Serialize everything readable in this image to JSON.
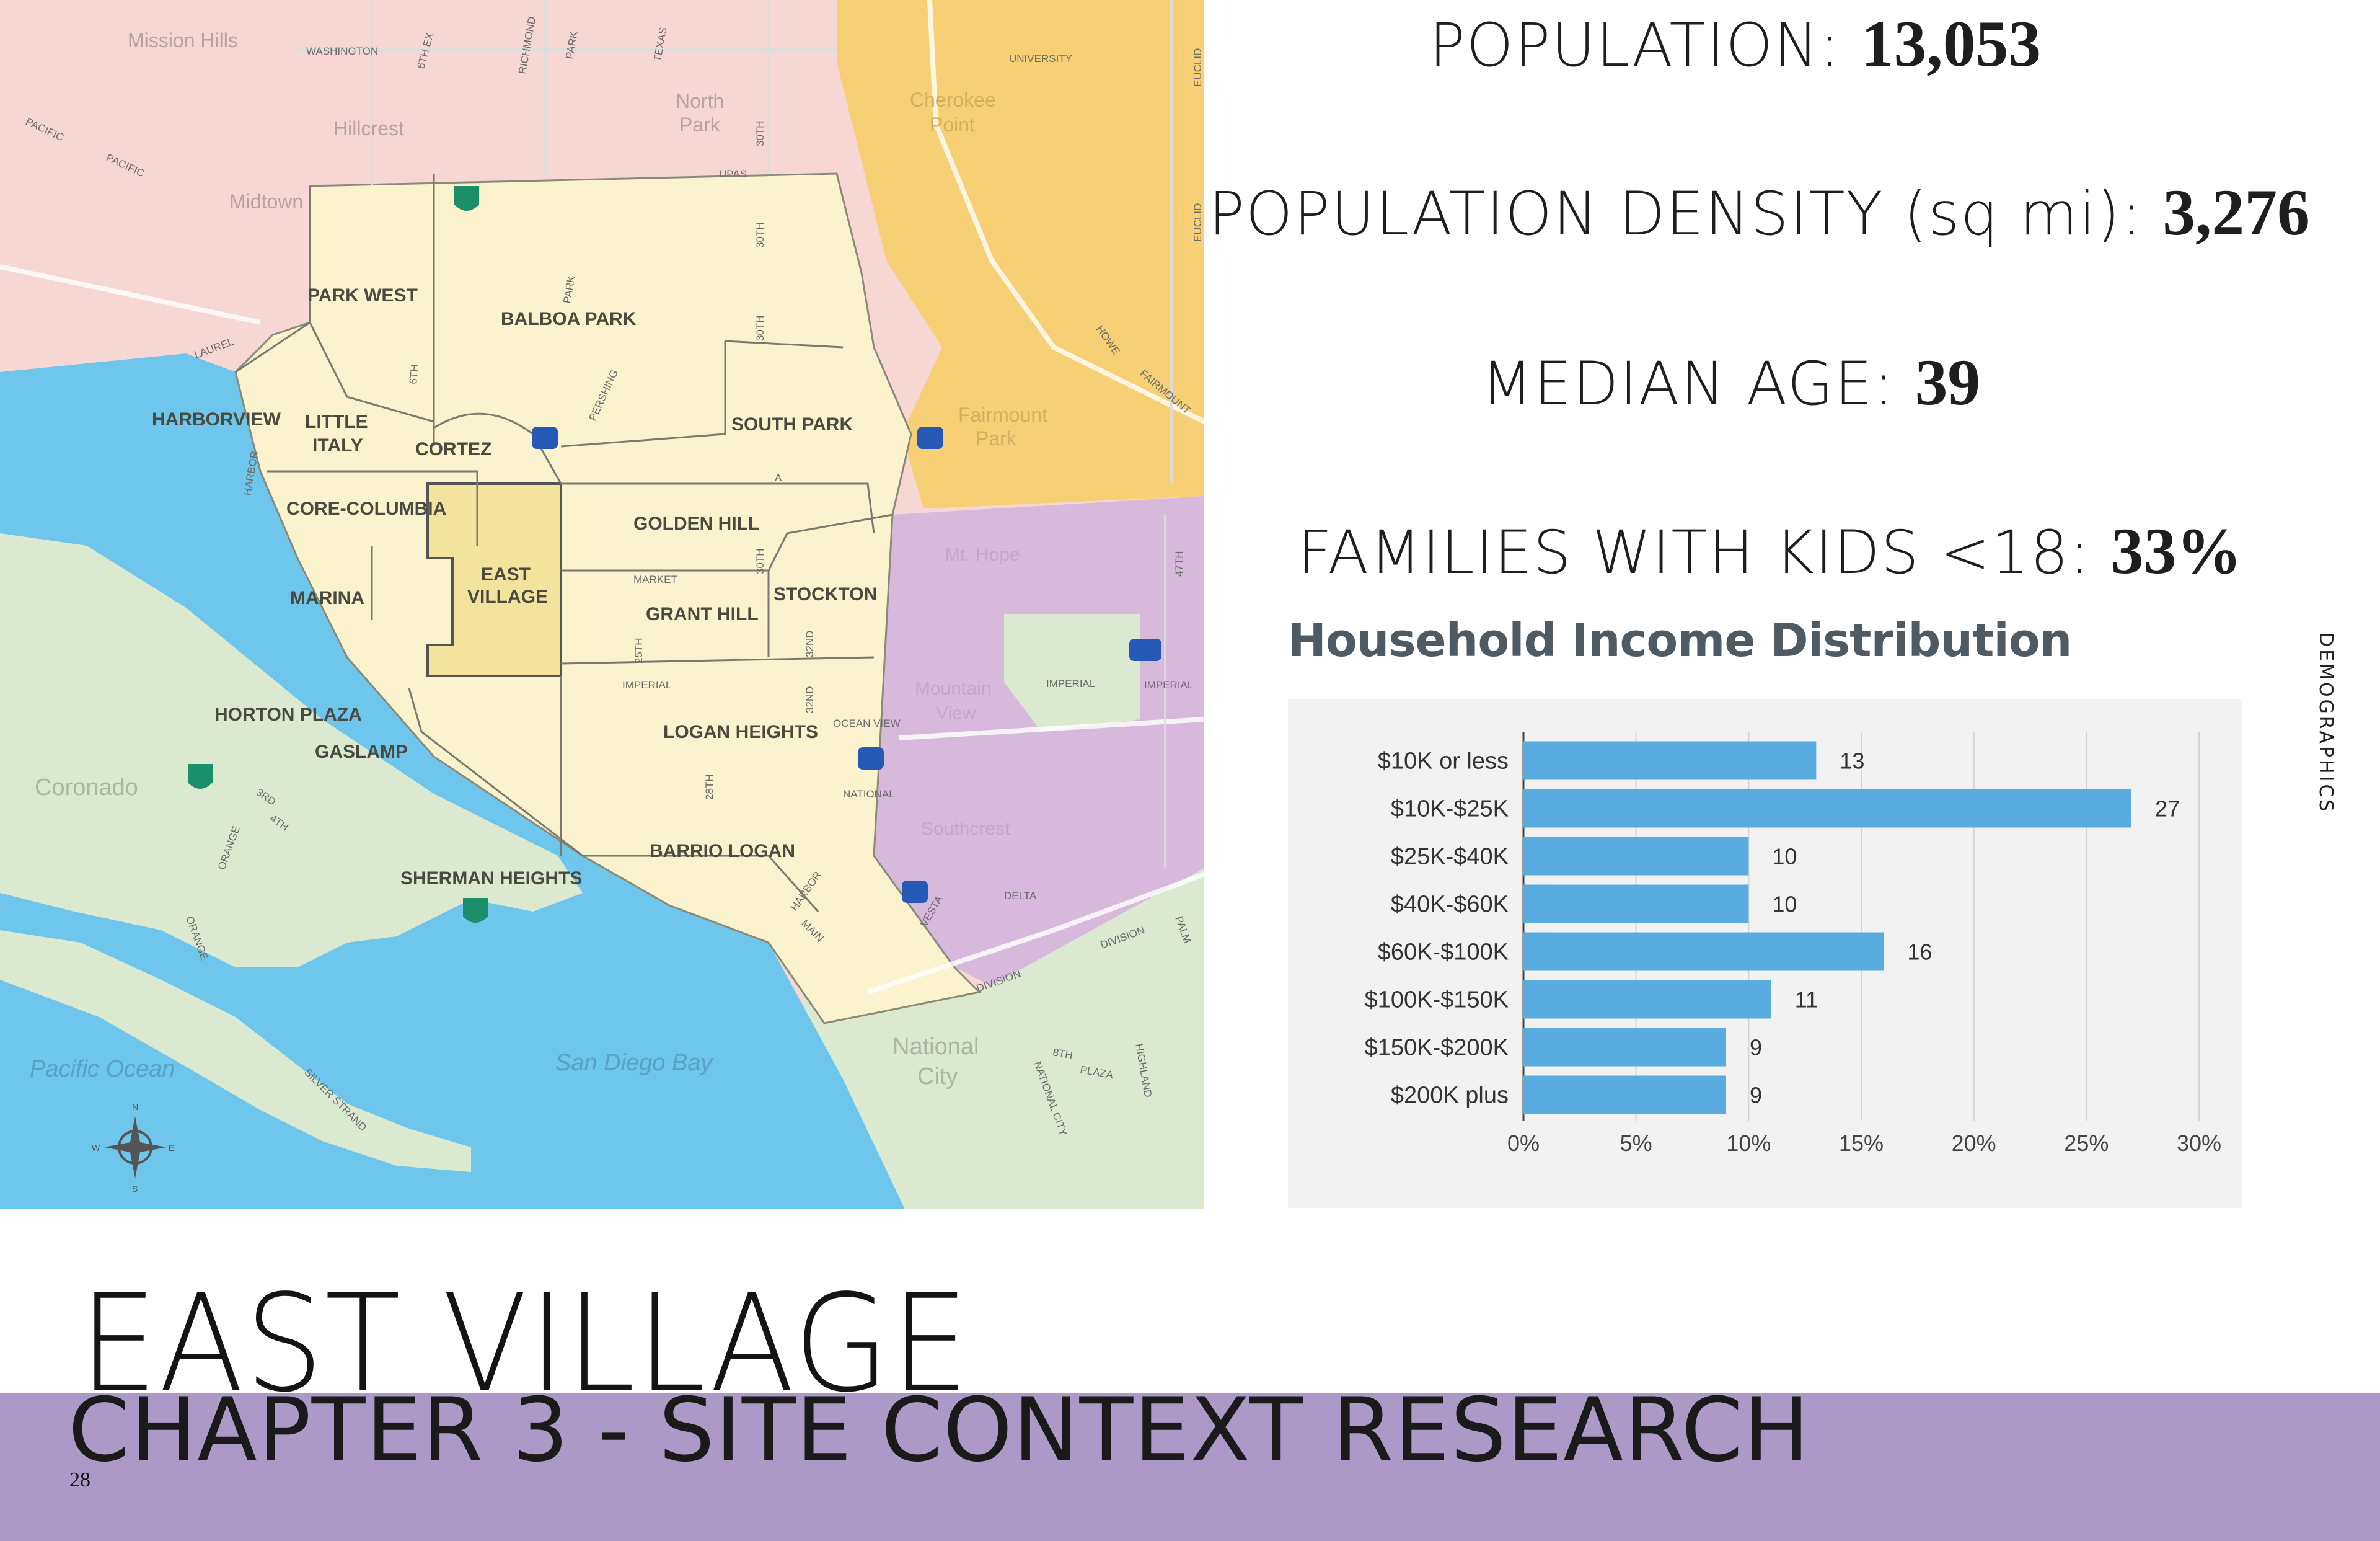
{
  "stats": {
    "population": {
      "label": "POPULATION:",
      "value": "13,053"
    },
    "density": {
      "label": "POPULATION DENSITY (sq mi):",
      "value": "3,276"
    },
    "median_age": {
      "label": "MEDIAN AGE:",
      "value": "39"
    },
    "families": {
      "label": "FAMILIES WITH KIDS <18:",
      "value": "33%"
    }
  },
  "side_label": "DEMOGRAPHICS",
  "doc_title": "EAST VILLAGE",
  "chapter_title": "CHAPTER 3 - SITE CONTEXT RESEARCH",
  "page_number": "28",
  "colors": {
    "bar": "#5aace0",
    "footer": "#ad99c8",
    "water": "#6ec6ec",
    "downtown": "#faf3cd",
    "east_village": "#f2e49d",
    "north_pink": "#f7d7d4",
    "northeast_orange": "#f7d076",
    "east_purple": "#d7b9dc",
    "south_green": "#dbe9d1"
  },
  "map": {
    "labels": {
      "mission_hills": "Mission Hills",
      "washington": "WASHINGTON",
      "sixth_ex": "6TH EX",
      "richmond": "RICHMOND",
      "park_st": "PARK",
      "texas": "TEXAS",
      "university": "UNIVERSITY",
      "euclid": "EUCLID",
      "euclid2": "EUCLID",
      "hillcrest": "Hillcrest",
      "north_park": "North",
      "north_park2": "Park",
      "cherokee": "Cherokee",
      "cherokee2": "Point",
      "pacific1": "PACIFIC",
      "pacific2": "PACIFIC",
      "midtown": "Midtown",
      "upas": "UPAS",
      "thirtieth": "30TH",
      "thirtieth2": "30TH",
      "laurel": "LAUREL",
      "park_west": "PARK WEST",
      "balboa_park": "BALBOA PARK",
      "park_blvd": "PARK",
      "sixth": "6TH",
      "harborview": "HARBORVIEW",
      "little": "LITTLE",
      "italy": "ITALY",
      "cortez": "CORTEZ",
      "south_park": "SOUTH PARK",
      "fairmount": "Fairmount",
      "fairmount2": "Park",
      "howe": "HOWE",
      "fairmount_ave": "FAIRMOUNT",
      "pershing": "PERSHING",
      "harbor": "HARBOR",
      "core_columbia": "CORE-COLUMBIA",
      "golden_hill": "GOLDEN HILL",
      "a_st": "A",
      "east": "EAST",
      "village": "VILLAGE",
      "marina": "MARINA",
      "market": "MARKET",
      "stockton": "STOCKTON",
      "mt_hope": "Mt. Hope",
      "grant_hill": "GRANT HILL",
      "imperial": "IMPERIAL",
      "twentyfifth": "25TH",
      "thirtysecond": "32ND",
      "thirtysecond2": "32ND",
      "thirtieth3": "30TH",
      "fortyseventh": "47TH",
      "imperial2": "IMPERIAL",
      "imperial3": "IMPERIAL",
      "horton_plaza": "HORTON PLAZA",
      "logan_heights": "LOGAN HEIGHTS",
      "ocean_view": "OCEAN VIEW",
      "mountain_view": "Mountain",
      "mountain_view2": "View",
      "gaslamp": "GASLAMP",
      "national": "NATIONAL",
      "coronado": "Coronado",
      "third": "3RD",
      "fourth": "4TH",
      "twentyeighth": "28TH",
      "southcrest": "Southcrest",
      "orange": "ORANGE",
      "orange2": "ORANGE",
      "barrio_logan": "BARRIO LOGAN",
      "sherman_heights": "SHERMAN HEIGHTS",
      "harbor2": "HARBOR",
      "main": "MAIN",
      "delta": "DELTA",
      "division": "DIVISION",
      "division2": "DIVISION",
      "palm": "PALM",
      "vesta": "VESTA",
      "national_city": "National",
      "national_city2": "City",
      "pacific_ocean": "Pacific Ocean",
      "san_diego_bay": "San Diego Bay",
      "silver_strand": "SILVER STRAND",
      "eighth": "8TH",
      "plaza": "PLAZA",
      "highland": "HIGHLAND",
      "national_city_blvd": "NATIONAL CITY",
      "n": "N",
      "s": "S",
      "e": "E",
      "w": "W"
    }
  },
  "chart_data": {
    "type": "bar",
    "orientation": "horizontal",
    "title": "Household Income Distribution",
    "categories": [
      "$10K or less",
      "$10K-$25K",
      "$25K-$40K",
      "$40K-$60K",
      "$60K-$100K",
      "$100K-$150K",
      "$150K-$200K",
      "$200K plus"
    ],
    "values": [
      13,
      27,
      10,
      10,
      16,
      11,
      9,
      9
    ],
    "data_labels": [
      "13",
      "27",
      "10",
      "10",
      "16",
      "11",
      "9",
      "9"
    ],
    "x_ticks": [
      "0%",
      "5%",
      "10%",
      "15%",
      "20%",
      "25%",
      "30%"
    ],
    "xlim": [
      0,
      30
    ],
    "grid": true,
    "xlabel": "",
    "ylabel": ""
  }
}
